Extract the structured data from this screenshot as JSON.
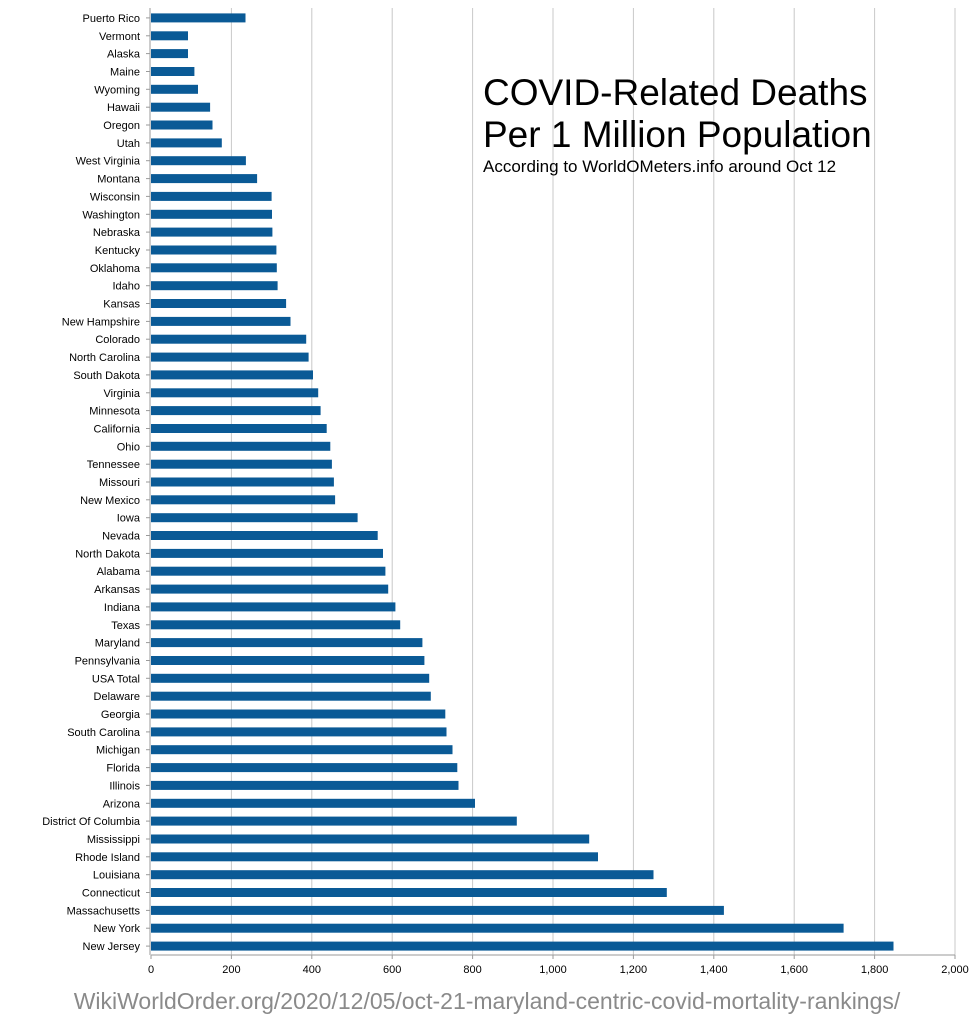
{
  "chart_data": {
    "type": "bar",
    "orientation": "horizontal",
    "title": "COVID-Related Deaths",
    "title_line2": "Per 1 Million Population",
    "subtitle": "According to WorldOMeters.info around Oct 12",
    "source": "WikiWorldOrder.org/2020/12/05/oct-21-maryland-centric-covid-mortality-rankings/",
    "xlim": [
      0,
      2000
    ],
    "x_ticks": [
      0,
      200,
      400,
      600,
      800,
      1000,
      1200,
      1400,
      1600,
      1800,
      2000
    ],
    "x_tick_labels": [
      "0",
      "200",
      "400",
      "600",
      "800",
      "1,000",
      "1,200",
      "1,400",
      "1,600",
      "1,800",
      "2,000"
    ],
    "grid": "vertical",
    "legend": "none",
    "bar_color": "#0a5a96",
    "grid_color": "#c8c8c8",
    "categories": [
      "Puerto Rico",
      "Vermont",
      "Alaska",
      "Maine",
      "Wyoming",
      "Hawaii",
      "Oregon",
      "Utah",
      "West Virginia",
      "Montana",
      "Wisconsin",
      "Washington",
      "Nebraska",
      "Kentucky",
      "Oklahoma",
      "Idaho",
      "Kansas",
      "New Hampshire",
      "Colorado",
      "North Carolina",
      "South Dakota",
      "Virginia",
      "Minnesota",
      "California",
      "Ohio",
      "Tennessee",
      "Missouri",
      "New Mexico",
      "Iowa",
      "Nevada",
      "North Dakota",
      "Alabama",
      "Arkansas",
      "Indiana",
      "Texas",
      "Maryland",
      "Pennsylvania",
      "USA Total",
      "Delaware",
      "Georgia",
      "South Carolina",
      "Michigan",
      "Florida",
      "Illinois",
      "Arizona",
      "District Of Columbia",
      "Mississippi",
      "Rhode Island",
      "Louisiana",
      "Connecticut",
      "Massachusetts",
      "New York",
      "New Jersey"
    ],
    "values": [
      235,
      92,
      92,
      108,
      117,
      147,
      153,
      176,
      236,
      264,
      300,
      301,
      302,
      312,
      313,
      315,
      336,
      347,
      386,
      392,
      403,
      416,
      422,
      437,
      446,
      450,
      455,
      458,
      514,
      564,
      577,
      583,
      590,
      608,
      620,
      675,
      680,
      692,
      696,
      732,
      735,
      750,
      762,
      765,
      806,
      910,
      1090,
      1112,
      1250,
      1283,
      1425,
      1723,
      1847
    ]
  }
}
